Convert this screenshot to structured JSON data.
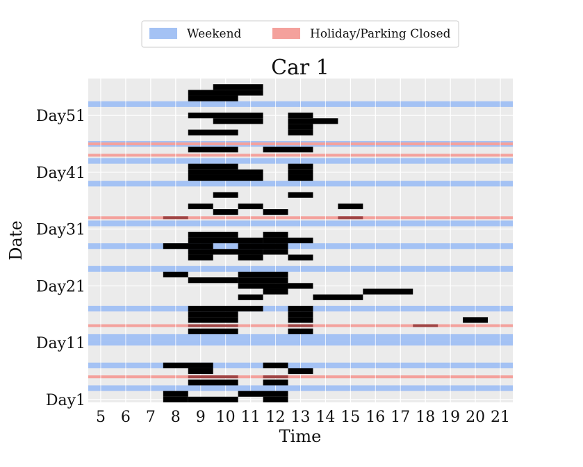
{
  "chart_data": {
    "type": "heatmap",
    "title": "Car 1",
    "xlabel": "Time",
    "ylabel": "Date",
    "xlim": [
      4.5,
      21.5
    ],
    "ylim": [
      0,
      57
    ],
    "x_ticks": [
      5,
      6,
      7,
      8,
      9,
      10,
      11,
      12,
      13,
      14,
      15,
      16,
      17,
      18,
      19,
      20,
      21
    ],
    "y_ticks": [
      {
        "value": 1,
        "label": "Day1"
      },
      {
        "value": 11,
        "label": "Day11"
      },
      {
        "value": 21,
        "label": "Day21"
      },
      {
        "value": 31,
        "label": "Day31"
      },
      {
        "value": 41,
        "label": "Day41"
      },
      {
        "value": 51,
        "label": "Day51"
      }
    ],
    "grid": true,
    "legend": {
      "placement": "top-center",
      "entries": [
        {
          "label": "Weekend",
          "color": "#a4c2f4"
        },
        {
          "label": "Holiday/Parking Closed",
          "color": "#f4a19c"
        }
      ]
    },
    "weekend_days": [
      3,
      7,
      11,
      12,
      17,
      24,
      28,
      32,
      39,
      43,
      46,
      53
    ],
    "holiday_days": [
      5,
      14,
      33,
      44,
      46
    ],
    "usage_color": "#000000",
    "holiday_usage_color": "#a04545",
    "usage": [
      {
        "day": 1,
        "start": 7.5,
        "end": 8.5
      },
      {
        "day": 1,
        "start": 8.5,
        "end": 10.5
      },
      {
        "day": 1,
        "start": 11.5,
        "end": 12.5
      },
      {
        "day": 2,
        "start": 7.5,
        "end": 8.5
      },
      {
        "day": 2,
        "start": 10.5,
        "end": 12.5
      },
      {
        "day": 4,
        "start": 8.5,
        "end": 10.5
      },
      {
        "day": 4,
        "start": 11.5,
        "end": 12.5
      },
      {
        "day": 5,
        "start": 8.5,
        "end": 10.5
      },
      {
        "day": 5,
        "start": 11.5,
        "end": 12.5
      },
      {
        "day": 6,
        "start": 8.5,
        "end": 9.5
      },
      {
        "day": 6,
        "start": 12.5,
        "end": 13.5
      },
      {
        "day": 7,
        "start": 7.5,
        "end": 9.5
      },
      {
        "day": 7,
        "start": 11.5,
        "end": 12.5
      },
      {
        "day": 13,
        "start": 8.5,
        "end": 10.5
      },
      {
        "day": 13,
        "start": 12.5,
        "end": 13.5
      },
      {
        "day": 14,
        "start": 8.5,
        "end": 10.5
      },
      {
        "day": 14,
        "start": 12.5,
        "end": 13.5
      },
      {
        "day": 14,
        "start": 17.5,
        "end": 18.5
      },
      {
        "day": 15,
        "start": 8.5,
        "end": 10.5
      },
      {
        "day": 15,
        "start": 12.5,
        "end": 13.5
      },
      {
        "day": 15,
        "start": 19.5,
        "end": 20.5
      },
      {
        "day": 16,
        "start": 8.5,
        "end": 10.5
      },
      {
        "day": 16,
        "start": 12.5,
        "end": 13.5
      },
      {
        "day": 17,
        "start": 8.5,
        "end": 11.5
      },
      {
        "day": 17,
        "start": 12.5,
        "end": 13.5
      },
      {
        "day": 19,
        "start": 10.5,
        "end": 11.5
      },
      {
        "day": 19,
        "start": 13.5,
        "end": 15.5
      },
      {
        "day": 20,
        "start": 11.5,
        "end": 12.5
      },
      {
        "day": 20,
        "start": 15.5,
        "end": 17.5
      },
      {
        "day": 21,
        "start": 10.5,
        "end": 12.5
      },
      {
        "day": 21,
        "start": 12.5,
        "end": 13.5
      },
      {
        "day": 22,
        "start": 8.5,
        "end": 10.5
      },
      {
        "day": 22,
        "start": 10.5,
        "end": 12.5
      },
      {
        "day": 23,
        "start": 7.5,
        "end": 8.5
      },
      {
        "day": 23,
        "start": 10.5,
        "end": 12.5
      },
      {
        "day": 26,
        "start": 8.5,
        "end": 9.5
      },
      {
        "day": 26,
        "start": 10.5,
        "end": 11.5
      },
      {
        "day": 26,
        "start": 12.5,
        "end": 13.5
      },
      {
        "day": 27,
        "start": 8.5,
        "end": 11.5
      },
      {
        "day": 27,
        "start": 11.5,
        "end": 12.5
      },
      {
        "day": 28,
        "start": 7.5,
        "end": 9.5
      },
      {
        "day": 28,
        "start": 10.5,
        "end": 12.5
      },
      {
        "day": 29,
        "start": 8.5,
        "end": 11.5
      },
      {
        "day": 29,
        "start": 11.5,
        "end": 12.5
      },
      {
        "day": 29,
        "start": 12.5,
        "end": 13.5
      },
      {
        "day": 30,
        "start": 8.5,
        "end": 10.5
      },
      {
        "day": 30,
        "start": 11.5,
        "end": 12.5
      },
      {
        "day": 33,
        "start": 7.5,
        "end": 8.5
      },
      {
        "day": 33,
        "start": 14.5,
        "end": 15.5
      },
      {
        "day": 34,
        "start": 9.5,
        "end": 10.5
      },
      {
        "day": 34,
        "start": 11.5,
        "end": 12.5
      },
      {
        "day": 35,
        "start": 8.5,
        "end": 9.5
      },
      {
        "day": 35,
        "start": 10.5,
        "end": 11.5
      },
      {
        "day": 35,
        "start": 14.5,
        "end": 15.5
      },
      {
        "day": 37,
        "start": 9.5,
        "end": 10.5
      },
      {
        "day": 37,
        "start": 12.5,
        "end": 13.5
      },
      {
        "day": 40,
        "start": 8.5,
        "end": 11.5
      },
      {
        "day": 40,
        "start": 12.5,
        "end": 13.5
      },
      {
        "day": 41,
        "start": 8.5,
        "end": 11.5
      },
      {
        "day": 41,
        "start": 12.5,
        "end": 13.5
      },
      {
        "day": 42,
        "start": 8.5,
        "end": 10.5
      },
      {
        "day": 42,
        "start": 12.5,
        "end": 13.5
      },
      {
        "day": 45,
        "start": 8.5,
        "end": 10.5
      },
      {
        "day": 45,
        "start": 11.5,
        "end": 13.5
      },
      {
        "day": 48,
        "start": 8.5,
        "end": 10.5
      },
      {
        "day": 48,
        "start": 12.5,
        "end": 13.5
      },
      {
        "day": 49,
        "start": 12.5,
        "end": 13.5
      },
      {
        "day": 50,
        "start": 9.5,
        "end": 11.5
      },
      {
        "day": 50,
        "start": 12.5,
        "end": 14.5
      },
      {
        "day": 51,
        "start": 8.5,
        "end": 11.5
      },
      {
        "day": 51,
        "start": 12.5,
        "end": 13.5
      },
      {
        "day": 54,
        "start": 8.5,
        "end": 10.5
      },
      {
        "day": 55,
        "start": 8.5,
        "end": 11.5
      },
      {
        "day": 56,
        "start": 9.5,
        "end": 11.5
      }
    ]
  }
}
